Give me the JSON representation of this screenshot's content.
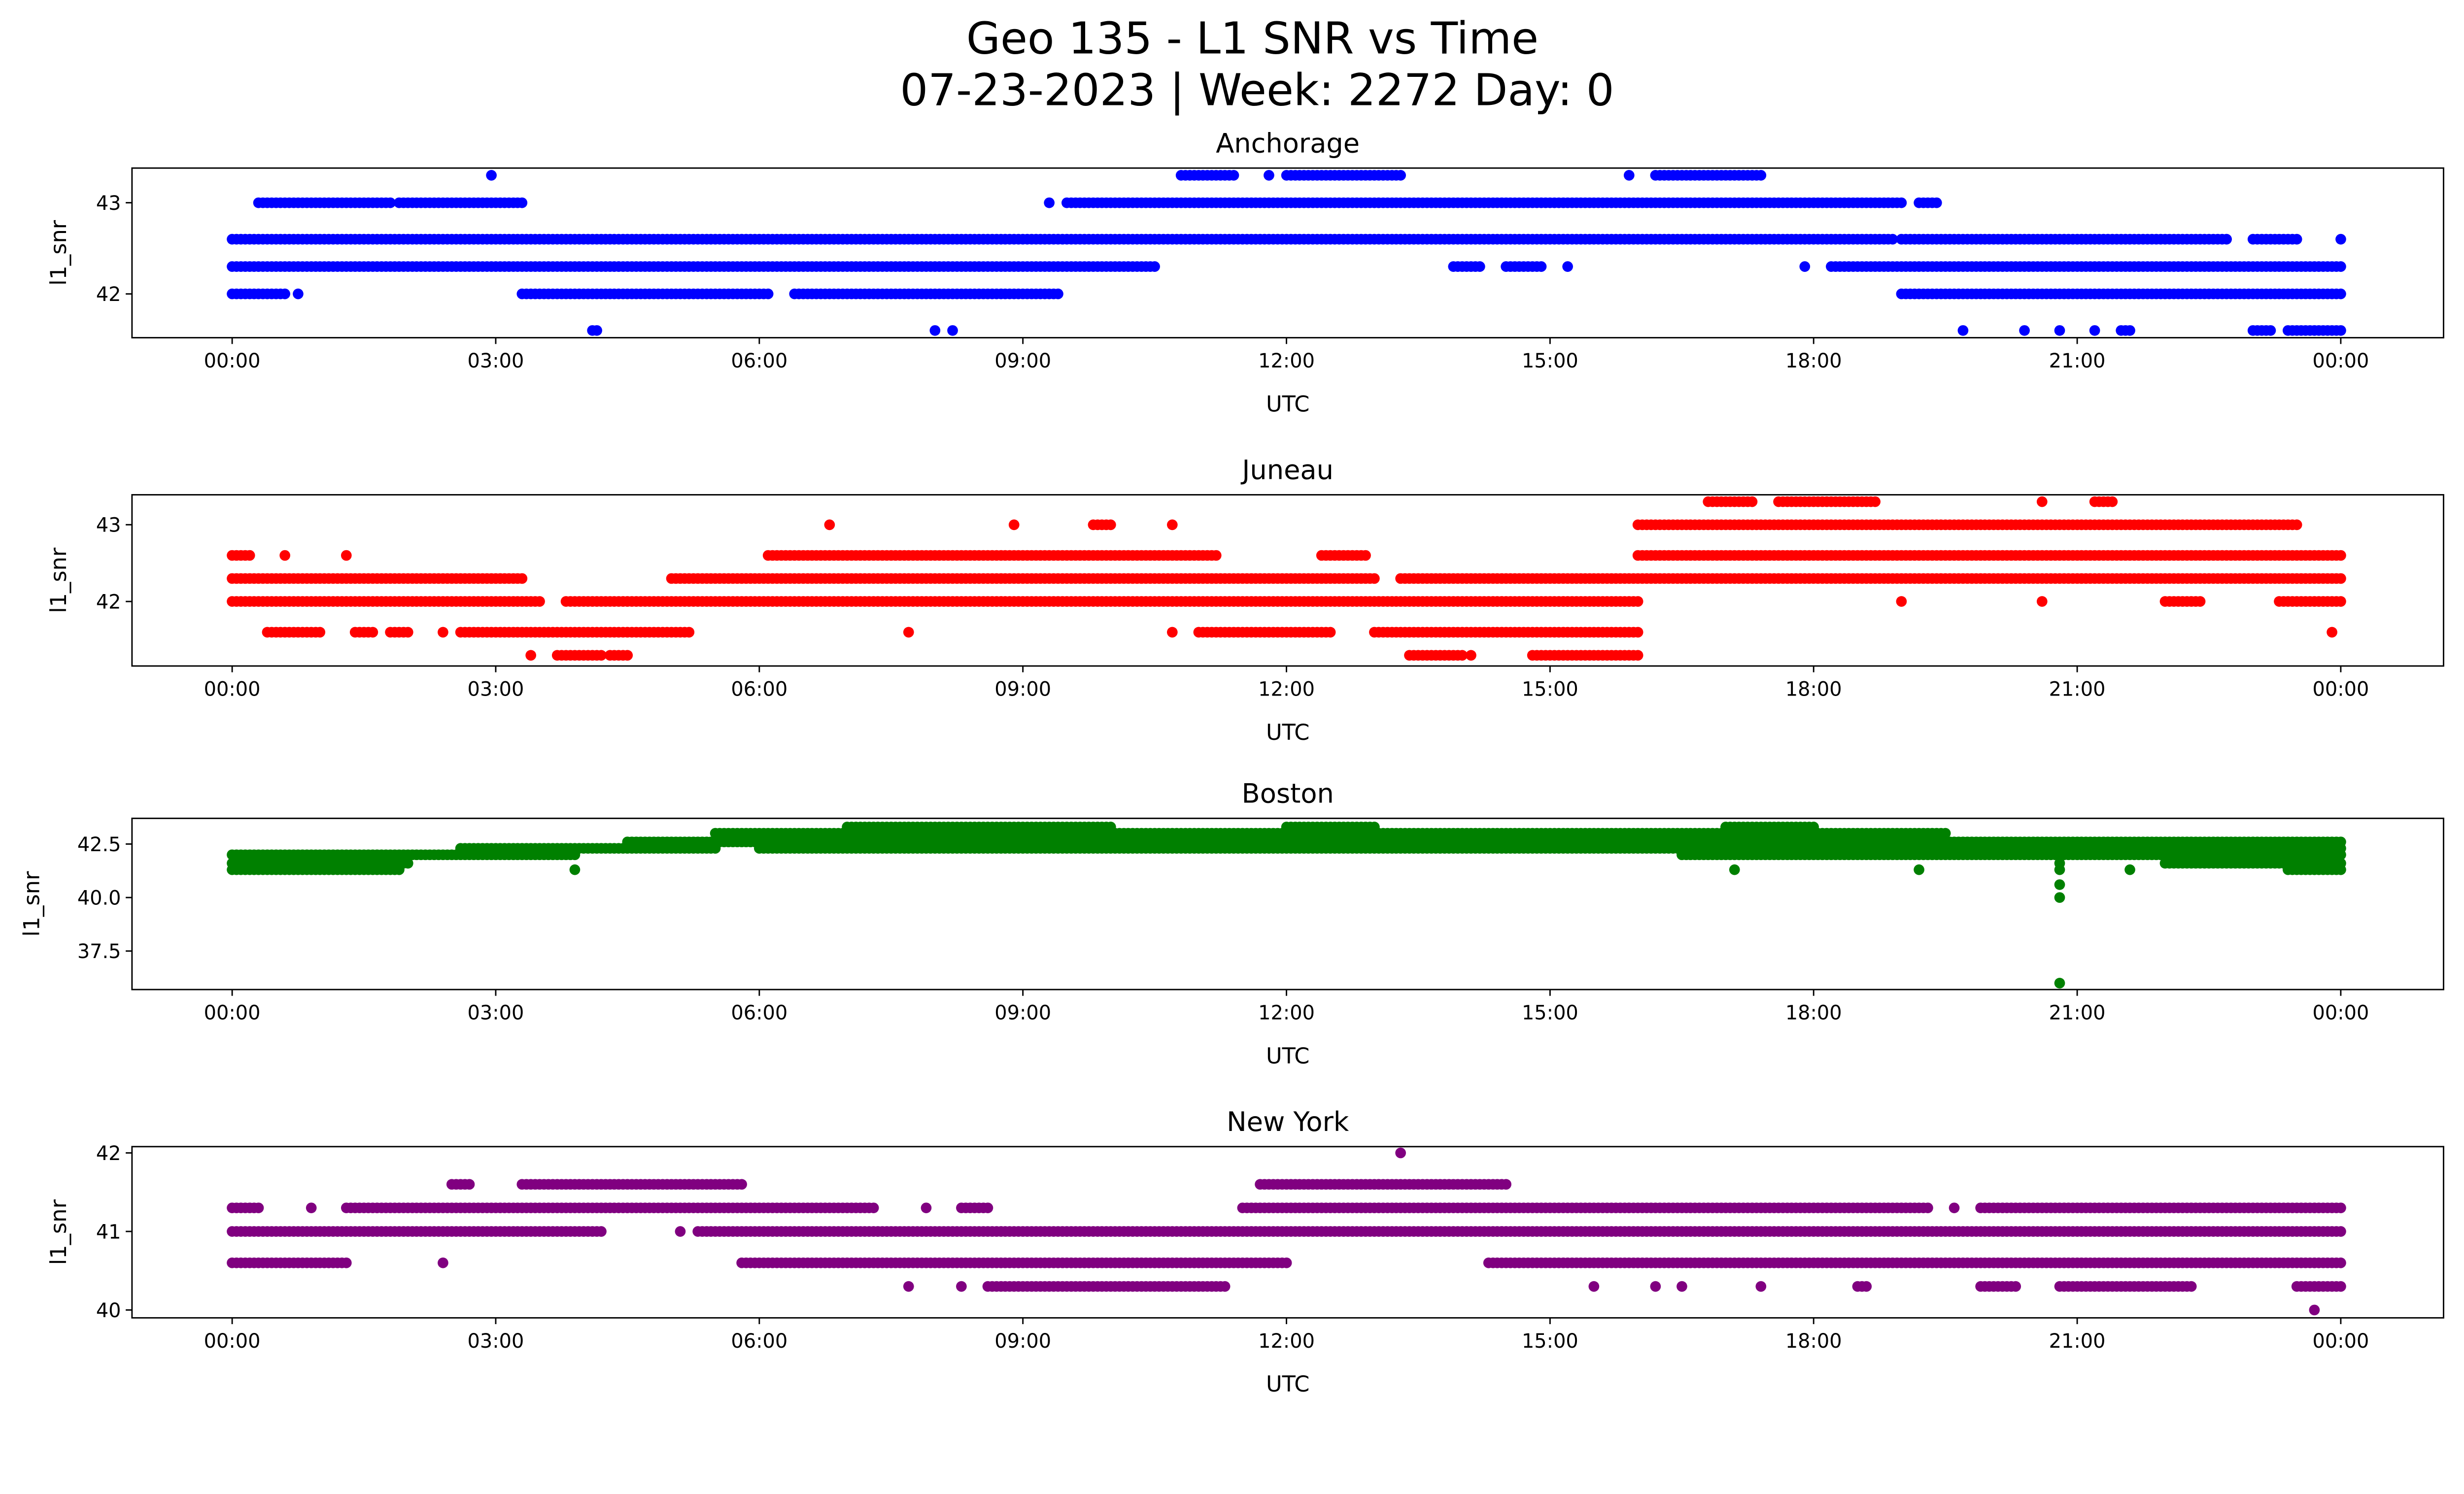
{
  "title_line1": "Geo 135 - L1 SNR vs Time",
  "title_line2": "07-23-2023 | Week: 2272 Day: 0",
  "chart_data": [
    {
      "type": "scatter",
      "title": "Anchorage",
      "xlabel": "UTC",
      "ylabel": "l1_snr",
      "color": "#0000ff",
      "xlim_hours": [
        -1.14,
        25.17
      ],
      "ylim": [
        41.52,
        43.38
      ],
      "xticks_hours": [
        0,
        3,
        6,
        9,
        12,
        15,
        18,
        21,
        24
      ],
      "xtick_labels": [
        "00:00",
        "03:00",
        "06:00",
        "09:00",
        "12:00",
        "15:00",
        "18:00",
        "21:00",
        "00:00"
      ],
      "yticks": [
        42,
        43
      ],
      "ytick_labels": [
        "42",
        "43"
      ],
      "sample_step_hours": 0.05,
      "levels": [
        {
          "y": 42.6,
          "runs": [
            [
              0,
              18.9
            ],
            [
              19.0,
              22.7
            ],
            [
              23.0,
              23.5
            ],
            [
              24,
              24
            ]
          ]
        },
        {
          "y": 42.3,
          "runs": [
            [
              0,
              10.5
            ],
            [
              13.9,
              14.2
            ],
            [
              14.5,
              14.9
            ],
            [
              15.2,
              15.2
            ],
            [
              17.9,
              17.9
            ],
            [
              18.2,
              24
            ]
          ]
        },
        {
          "y": 43.0,
          "runs": [
            [
              0.3,
              1.8
            ],
            [
              1.9,
              3.3
            ],
            [
              9.3,
              9.3
            ],
            [
              9.5,
              19.0
            ],
            [
              19.2,
              19.4
            ]
          ]
        },
        {
          "y": 43.3,
          "runs": [
            [
              2.95,
              2.95
            ],
            [
              10.8,
              11.4
            ],
            [
              11.8,
              11.8
            ],
            [
              12.0,
              13.3
            ],
            [
              15.9,
              15.9
            ],
            [
              16.2,
              17.4
            ]
          ]
        },
        {
          "y": 42.0,
          "runs": [
            [
              0,
              0.6
            ],
            [
              0.75,
              0.75
            ],
            [
              3.3,
              6.1
            ],
            [
              6.4,
              9.4
            ],
            [
              19.0,
              24
            ]
          ]
        },
        {
          "y": 41.6,
          "runs": [
            [
              4.1,
              4.15
            ],
            [
              8.0,
              8.0
            ],
            [
              8.2,
              8.2
            ],
            [
              19.7,
              19.7
            ],
            [
              20.4,
              20.4
            ],
            [
              20.8,
              20.8
            ],
            [
              21.2,
              21.2
            ],
            [
              21.5,
              21.6
            ],
            [
              23.0,
              23.2
            ],
            [
              23.4,
              24
            ]
          ]
        }
      ]
    },
    {
      "type": "scatter",
      "title": "Juneau",
      "xlabel": "UTC",
      "ylabel": "l1_snr",
      "color": "#ff0000",
      "xlim_hours": [
        -1.14,
        25.17
      ],
      "ylim": [
        41.16,
        43.39
      ],
      "xticks_hours": [
        0,
        3,
        6,
        9,
        12,
        15,
        18,
        21,
        24
      ],
      "xtick_labels": [
        "00:00",
        "03:00",
        "06:00",
        "09:00",
        "12:00",
        "15:00",
        "18:00",
        "21:00",
        "00:00"
      ],
      "yticks": [
        42,
        43
      ],
      "ytick_labels": [
        "42",
        "43"
      ],
      "sample_step_hours": 0.05,
      "levels": [
        {
          "y": 42.3,
          "runs": [
            [
              0,
              3.3
            ],
            [
              5.0,
              13.0
            ],
            [
              13.3,
              24
            ]
          ]
        },
        {
          "y": 42.0,
          "runs": [
            [
              0,
              3.5
            ],
            [
              3.8,
              16.0
            ],
            [
              19.0,
              19.0
            ],
            [
              20.6,
              20.6
            ],
            [
              22.0,
              22.4
            ],
            [
              23.3,
              24
            ]
          ]
        },
        {
          "y": 42.6,
          "runs": [
            [
              0,
              0.2
            ],
            [
              0.6,
              0.6
            ],
            [
              1.3,
              1.3
            ],
            [
              6.1,
              11.2
            ],
            [
              12.4,
              12.9
            ],
            [
              16.0,
              24
            ]
          ]
        },
        {
          "y": 41.6,
          "runs": [
            [
              0.4,
              1.0
            ],
            [
              1.4,
              1.6
            ],
            [
              1.8,
              2.0
            ],
            [
              2.4,
              2.4
            ],
            [
              2.6,
              5.2
            ],
            [
              7.7,
              7.7
            ],
            [
              10.7,
              10.7
            ],
            [
              11.0,
              12.5
            ],
            [
              13.0,
              16.0
            ],
            [
              23.9,
              23.9
            ]
          ]
        },
        {
          "y": 43.0,
          "runs": [
            [
              6.8,
              6.8
            ],
            [
              8.9,
              8.9
            ],
            [
              9.8,
              10.0
            ],
            [
              10.7,
              10.7
            ],
            [
              16.0,
              23.5
            ]
          ]
        },
        {
          "y": 43.3,
          "runs": [
            [
              16.8,
              17.3
            ],
            [
              17.6,
              18.7
            ],
            [
              20.6,
              20.6
            ],
            [
              21.2,
              21.4
            ]
          ]
        },
        {
          "y": 41.3,
          "runs": [
            [
              3.4,
              3.4
            ],
            [
              3.7,
              4.2
            ],
            [
              4.3,
              4.5
            ],
            [
              13.4,
              14.0
            ],
            [
              14.1,
              14.1
            ],
            [
              14.8,
              16.0
            ]
          ]
        }
      ]
    },
    {
      "type": "scatter",
      "title": "Boston",
      "xlabel": "UTC",
      "ylabel": "l1_snr",
      "color": "#008000",
      "xlim_hours": [
        -1.14,
        25.17
      ],
      "ylim": [
        35.7,
        43.7
      ],
      "xticks_hours": [
        0,
        3,
        6,
        9,
        12,
        15,
        18,
        21,
        24
      ],
      "xtick_labels": [
        "00:00",
        "03:00",
        "06:00",
        "09:00",
        "12:00",
        "15:00",
        "18:00",
        "21:00",
        "00:00"
      ],
      "yticks": [
        37.5,
        40.0,
        42.5
      ],
      "ytick_labels": [
        "37.5",
        "40.0",
        "42.5"
      ],
      "sample_step_hours": 0.05,
      "levels": [
        {
          "y": 41.3,
          "runs": [
            [
              0,
              1.9
            ],
            [
              3.9,
              3.9
            ],
            [
              17.1,
              17.1
            ],
            [
              19.2,
              19.2
            ],
            [
              20.8,
              20.8
            ],
            [
              21.6,
              21.6
            ],
            [
              23.4,
              24
            ]
          ]
        },
        {
          "y": 41.6,
          "runs": [
            [
              0,
              2.0
            ],
            [
              20.8,
              20.8
            ],
            [
              22.0,
              24
            ]
          ]
        },
        {
          "y": 42.0,
          "runs": [
            [
              0,
              3.9
            ],
            [
              16.5,
              24
            ]
          ]
        },
        {
          "y": 42.3,
          "runs": [
            [
              2.6,
              5.5
            ],
            [
              6.0,
              24
            ]
          ]
        },
        {
          "y": 42.6,
          "runs": [
            [
              4.5,
              24
            ]
          ]
        },
        {
          "y": 43.0,
          "runs": [
            [
              5.5,
              19.5
            ]
          ]
        },
        {
          "y": 43.3,
          "runs": [
            [
              7.0,
              10.0
            ],
            [
              12.0,
              13.0
            ],
            [
              17.0,
              18.0
            ]
          ]
        },
        {
          "y": 40.6,
          "runs": [
            [
              20.8,
              20.8
            ]
          ]
        },
        {
          "y": 40.0,
          "runs": [
            [
              20.8,
              20.8
            ]
          ]
        },
        {
          "y": 36.0,
          "runs": [
            [
              20.8,
              20.8
            ]
          ]
        }
      ]
    },
    {
      "type": "scatter",
      "title": "New York",
      "xlabel": "UTC",
      "ylabel": "l1_snr",
      "color": "#800080",
      "xlim_hours": [
        -1.14,
        25.17
      ],
      "ylim": [
        39.9,
        42.08
      ],
      "xticks_hours": [
        0,
        3,
        6,
        9,
        12,
        15,
        18,
        21,
        24
      ],
      "xtick_labels": [
        "00:00",
        "03:00",
        "06:00",
        "09:00",
        "12:00",
        "15:00",
        "18:00",
        "21:00",
        "00:00"
      ],
      "yticks": [
        40,
        41,
        42
      ],
      "ytick_labels": [
        "40",
        "41",
        "42"
      ],
      "sample_step_hours": 0.05,
      "levels": [
        {
          "y": 41.0,
          "runs": [
            [
              0,
              4.2
            ],
            [
              5.1,
              5.1
            ],
            [
              5.3,
              24
            ]
          ]
        },
        {
          "y": 40.6,
          "runs": [
            [
              0,
              1.3
            ],
            [
              2.4,
              2.4
            ],
            [
              5.8,
              12.0
            ],
            [
              14.3,
              24
            ]
          ]
        },
        {
          "y": 41.3,
          "runs": [
            [
              0,
              0.3
            ],
            [
              0.9,
              0.9
            ],
            [
              1.3,
              7.3
            ],
            [
              7.9,
              7.9
            ],
            [
              8.3,
              8.6
            ],
            [
              11.5,
              19.3
            ],
            [
              19.6,
              19.6
            ],
            [
              19.9,
              24
            ]
          ]
        },
        {
          "y": 41.6,
          "runs": [
            [
              2.5,
              2.7
            ],
            [
              3.3,
              5.8
            ],
            [
              11.7,
              14.5
            ]
          ]
        },
        {
          "y": 40.3,
          "runs": [
            [
              7.7,
              7.7
            ],
            [
              8.3,
              8.3
            ],
            [
              8.6,
              11.3
            ],
            [
              15.5,
              15.5
            ],
            [
              16.2,
              16.2
            ],
            [
              16.5,
              16.5
            ],
            [
              17.4,
              17.4
            ],
            [
              18.5,
              18.6
            ],
            [
              19.9,
              20.3
            ],
            [
              20.8,
              22.3
            ],
            [
              23.5,
              24
            ]
          ]
        },
        {
          "y": 42.0,
          "runs": [
            [
              13.3,
              13.3
            ]
          ]
        },
        {
          "y": 40.0,
          "runs": [
            [
              23.7,
              23.7
            ]
          ]
        }
      ]
    }
  ]
}
